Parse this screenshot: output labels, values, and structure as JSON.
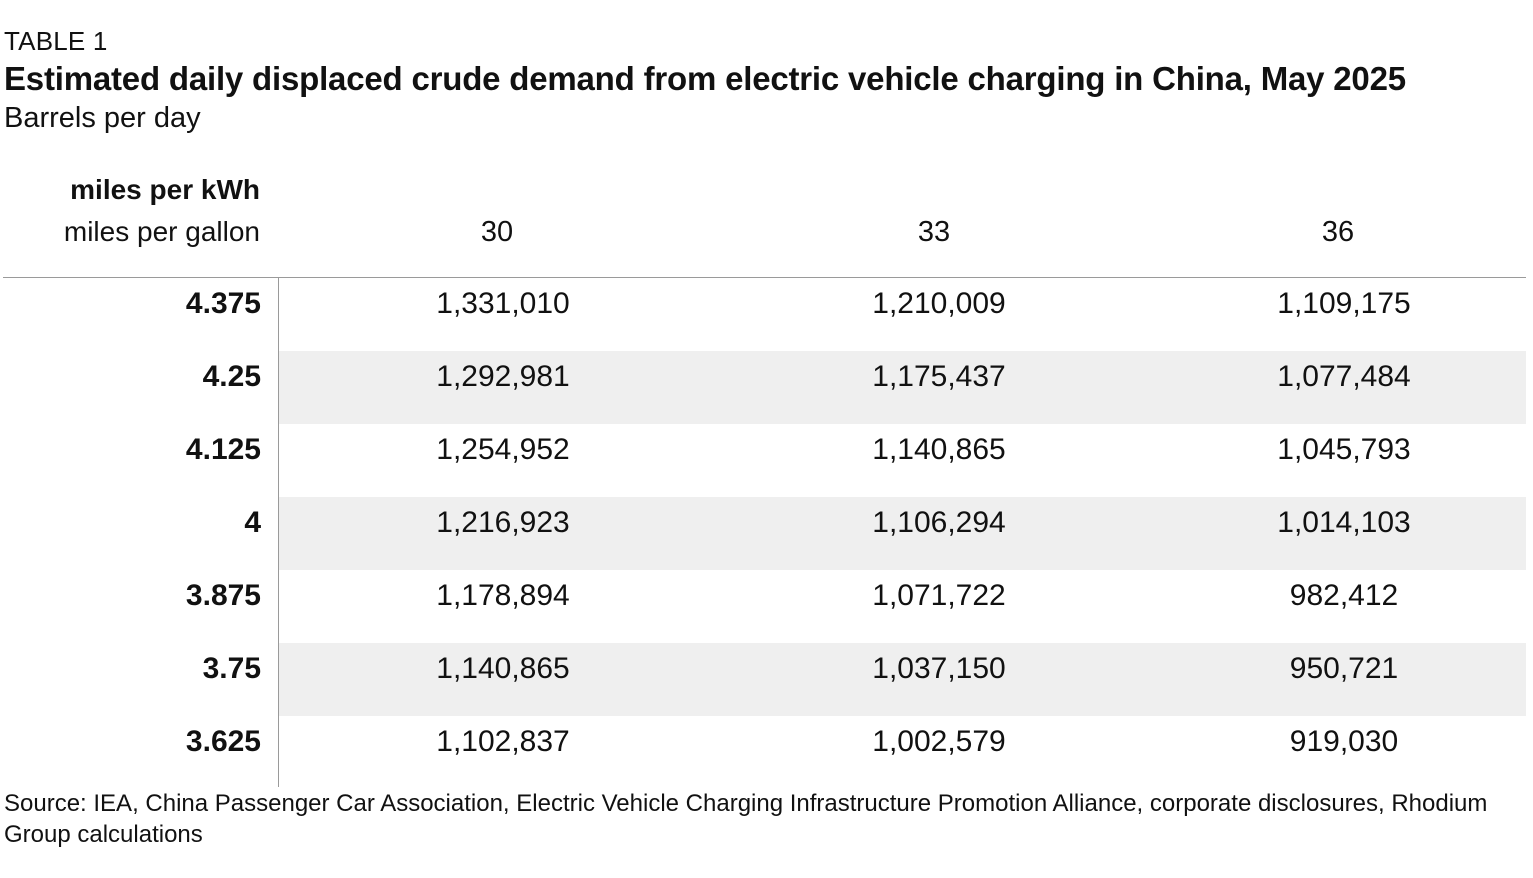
{
  "chart_data": {
    "type": "table",
    "label": "TABLE 1",
    "title": "Estimated daily displaced crude demand from electric vehicle charging in China, May 2025",
    "subtitle": "Barrels per day",
    "row_header_label": "miles per kWh",
    "col_header_label": "miles per gallon",
    "columns": [
      "30",
      "33",
      "36"
    ],
    "rows": [
      {
        "label": "4.375",
        "values": [
          "1,331,010",
          "1,210,009",
          "1,109,175"
        ]
      },
      {
        "label": "4.25",
        "values": [
          "1,292,981",
          "1,175,437",
          "1,077,484"
        ]
      },
      {
        "label": "4.125",
        "values": [
          "1,254,952",
          "1,140,865",
          "1,045,793"
        ]
      },
      {
        "label": "4",
        "values": [
          "1,216,923",
          "1,106,294",
          "1,014,103"
        ]
      },
      {
        "label": "3.875",
        "values": [
          "1,178,894",
          "1,071,722",
          "982,412"
        ]
      },
      {
        "label": "3.75",
        "values": [
          "1,140,865",
          "1,037,150",
          "950,721"
        ]
      },
      {
        "label": "3.625",
        "values": [
          "1,102,837",
          "1,002,579",
          "919,030"
        ]
      }
    ],
    "source": "Source: IEA, China Passenger Car Association, Electric Vehicle Charging Infrastructure Promotion Alliance, corporate disclosures, Rhodium Group calculations"
  },
  "colors": {
    "text": "#111111",
    "row_shade": "#efefef",
    "rule": "#9a9a9a"
  }
}
